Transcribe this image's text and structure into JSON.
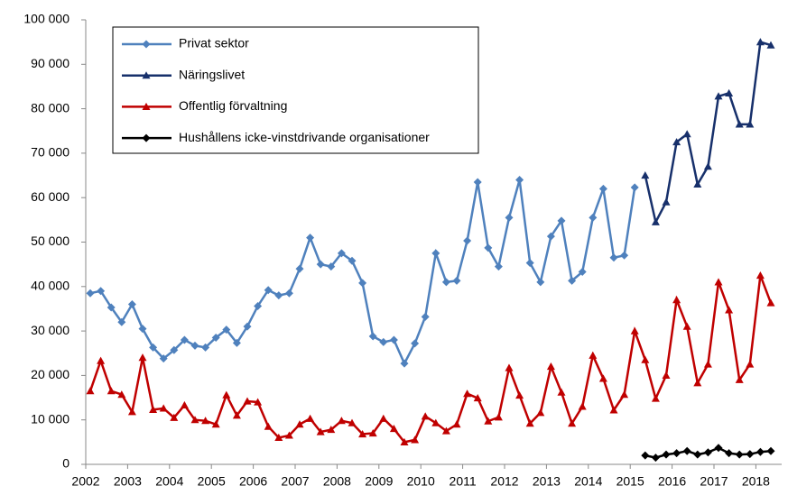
{
  "chart_data": {
    "type": "line",
    "categories": [
      "2002",
      null,
      null,
      null,
      "2003",
      null,
      null,
      null,
      "2004",
      null,
      null,
      null,
      "2005",
      null,
      null,
      null,
      "2006",
      null,
      null,
      null,
      "2007",
      null,
      null,
      null,
      "2008",
      null,
      null,
      null,
      "2009",
      null,
      null,
      null,
      "2010",
      null,
      null,
      null,
      "2011",
      null,
      null,
      null,
      "2012",
      null,
      null,
      null,
      "2013",
      null,
      null,
      null,
      "2014",
      null,
      null,
      null,
      "2015",
      null,
      null,
      null,
      "2016",
      null,
      null,
      null,
      "2017",
      null,
      null,
      null,
      "2018",
      null
    ],
    "series": [
      {
        "name": "Privat sektor",
        "color": "#4f81bd",
        "marker": "diamond",
        "values": [
          38500,
          39000,
          35300,
          32000,
          36000,
          30500,
          26300,
          23800,
          25700,
          28000,
          26700,
          26300,
          28500,
          30300,
          27300,
          31000,
          35600,
          39200,
          38000,
          38500,
          44000,
          51000,
          45000,
          44500,
          47500,
          45800,
          40800,
          28800,
          27500,
          28000,
          22700,
          27200,
          33200,
          47500,
          41000,
          41300,
          50300,
          63500,
          48700,
          44500,
          55500,
          64000,
          45300,
          41000,
          51300,
          54800,
          41300,
          43300,
          55500,
          62000,
          46500,
          47000,
          62300,
          null,
          null,
          null,
          null,
          null,
          null,
          null,
          null,
          null,
          null,
          null,
          null,
          null
        ]
      },
      {
        "name": "Näringslivet",
        "color": "#17306b",
        "marker": "triangle",
        "values": [
          null,
          null,
          null,
          null,
          null,
          null,
          null,
          null,
          null,
          null,
          null,
          null,
          null,
          null,
          null,
          null,
          null,
          null,
          null,
          null,
          null,
          null,
          null,
          null,
          null,
          null,
          null,
          null,
          null,
          null,
          null,
          null,
          null,
          null,
          null,
          null,
          null,
          null,
          null,
          null,
          null,
          null,
          null,
          null,
          null,
          null,
          null,
          null,
          null,
          null,
          null,
          null,
          null,
          65000,
          54500,
          59000,
          72500,
          74300,
          63000,
          67000,
          82800,
          83500,
          76500,
          76500,
          95000,
          94300
        ]
      },
      {
        "name": "Offentlig förvaltning",
        "color": "#c00000",
        "marker": "triangle",
        "values": [
          16500,
          23300,
          16500,
          15700,
          11800,
          24000,
          12300,
          12600,
          10500,
          13300,
          10000,
          9800,
          9000,
          15600,
          11000,
          14200,
          14000,
          8500,
          6000,
          6500,
          9000,
          10300,
          7300,
          7800,
          9800,
          9300,
          6800,
          7000,
          10300,
          8000,
          5000,
          5500,
          10800,
          9300,
          7500,
          9000,
          15900,
          14900,
          9700,
          10600,
          21700,
          15500,
          9200,
          11600,
          22000,
          16200,
          9200,
          13000,
          24500,
          19300,
          12200,
          15700,
          30000,
          23500,
          14800,
          20000,
          37000,
          31000,
          18300,
          22500,
          41000,
          34700,
          19000,
          22500,
          42500,
          36300
        ]
      },
      {
        "name": "Hushållens icke-vinstdrivande organisationer",
        "color": "#000000",
        "marker": "diamond",
        "values": [
          null,
          null,
          null,
          null,
          null,
          null,
          null,
          null,
          null,
          null,
          null,
          null,
          null,
          null,
          null,
          null,
          null,
          null,
          null,
          null,
          null,
          null,
          null,
          null,
          null,
          null,
          null,
          null,
          null,
          null,
          null,
          null,
          null,
          null,
          null,
          null,
          null,
          null,
          null,
          null,
          null,
          null,
          null,
          null,
          null,
          null,
          null,
          null,
          null,
          null,
          null,
          null,
          null,
          2000,
          1500,
          2200,
          2500,
          3000,
          2200,
          2700,
          3700,
          2500,
          2200,
          2300,
          2800,
          3000
        ]
      }
    ],
    "ylim": [
      0,
      100000
    ],
    "yticks": [
      0,
      {
        "value": 10000,
        "label": "10 000"
      },
      {
        "value": 20000,
        "label": "20 000"
      },
      {
        "value": 30000,
        "label": "30 000"
      },
      {
        "value": 40000,
        "label": "40 000"
      },
      {
        "value": 50000,
        "label": "50 000"
      },
      {
        "value": 60000,
        "label": "60 000"
      },
      {
        "value": 70000,
        "label": "70 000"
      },
      {
        "value": 80000,
        "label": "80 000"
      },
      {
        "value": 90000,
        "label": "90 000"
      },
      {
        "value": 100000,
        "label": "100 000"
      }
    ],
    "grid": false,
    "legend": "upper left"
  }
}
